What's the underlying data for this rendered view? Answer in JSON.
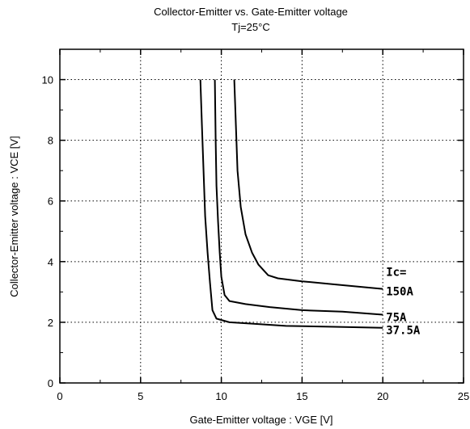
{
  "chart_data": {
    "type": "line",
    "title": "Collector-Emitter vs. Gate-Emitter voltage",
    "subtitle": "Tj=25°C",
    "xlabel": "Gate-Emitter voltage : VGE [V]",
    "ylabel": "Collector-Emitter voltage : VCE [V]",
    "xlim": [
      0,
      25
    ],
    "ylim": [
      0,
      11
    ],
    "xticks": [
      0,
      5,
      10,
      15,
      20,
      25
    ],
    "yticks": [
      0,
      2,
      4,
      6,
      8,
      10
    ],
    "grid": true,
    "legend_title": "Ic=",
    "series": [
      {
        "name": "150A",
        "x": [
          10.8,
          10.9,
          11.0,
          11.2,
          11.5,
          11.9,
          12.3,
          12.9,
          13.5,
          15,
          17,
          20
        ],
        "y": [
          10,
          8.5,
          7.0,
          5.8,
          4.9,
          4.3,
          3.9,
          3.55,
          3.45,
          3.35,
          3.25,
          3.1
        ]
      },
      {
        "name": "75A",
        "x": [
          9.6,
          9.65,
          9.7,
          9.8,
          9.9,
          10.0,
          10.2,
          10.5,
          11.5,
          13,
          15,
          17.5,
          20
        ],
        "y": [
          10,
          8.0,
          6.5,
          5.3,
          4.3,
          3.5,
          2.9,
          2.7,
          2.6,
          2.5,
          2.4,
          2.35,
          2.25
        ]
      },
      {
        "name": "37.5A",
        "x": [
          8.7,
          8.8,
          8.9,
          9.0,
          9.15,
          9.3,
          9.45,
          9.7,
          10.5,
          12,
          14,
          17,
          20
        ],
        "y": [
          10,
          8.5,
          7.0,
          5.5,
          4.3,
          3.3,
          2.4,
          2.12,
          2.0,
          1.95,
          1.88,
          1.85,
          1.82
        ]
      }
    ]
  }
}
